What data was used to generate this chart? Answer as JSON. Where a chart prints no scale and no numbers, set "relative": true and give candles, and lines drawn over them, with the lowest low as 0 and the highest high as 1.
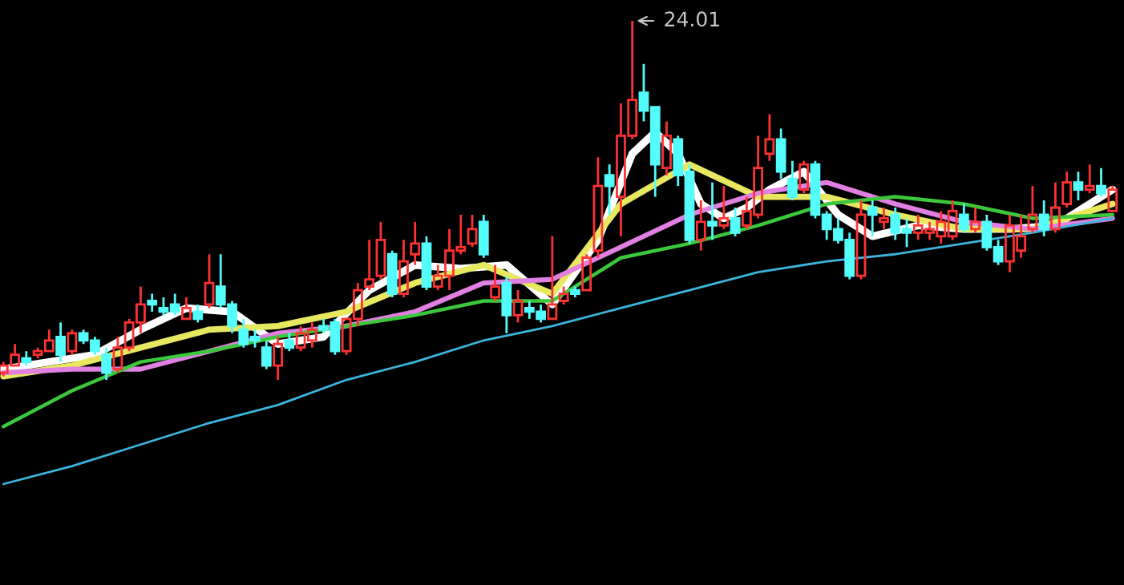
{
  "chart_data": {
    "type": "candlestick",
    "relative": true,
    "colors": [
      "#ff3232",
      "#ff3232",
      "#54fcfc",
      "#ff3232",
      "#ff3232",
      "#54fcfc",
      "#ff3232",
      "#54fcfc",
      "#54fcfc",
      "#54fcfc",
      "#ff3232",
      "#ff3232",
      "#ff3232",
      "#54fcfc",
      "#54fcfc",
      "#54fcfc",
      "#ff3232",
      "#54fcfc",
      "#ff3232",
      "#54fcfc",
      "#54fcfc",
      "#54fcfc",
      "#54fcfc",
      "#54fcfc",
      "#ff3232",
      "#54fcfc",
      "#ff3232",
      "#ff3232",
      "#54fcfc",
      "#54fcfc",
      "#ff3232",
      "#ff3232",
      "#ff3232",
      "#ff3232",
      "#54fcfc",
      "#ff3232",
      "#ff3232",
      "#54fcfc",
      "#ff3232",
      "#ff3232",
      "#ff3232",
      "#ff3232",
      "#54fcfc",
      "#ff3232",
      "#54fcfc",
      "#ff3232",
      "#54fcfc",
      "#54fcfc",
      "#ff3232",
      "#ff3232",
      "#54fcfc",
      "#ff3232",
      "#ff3232",
      "#54fcfc",
      "#ff3232",
      "#ff3232",
      "#54fcfc",
      "#54fcfc",
      "#ff3232",
      "#54fcfc",
      "#54fcfc",
      "#ff3232",
      "#54fcfc",
      "#ff3232",
      "#54fcfc",
      "#ff3232",
      "#ff3232",
      "#ff3232",
      "#54fcfc",
      "#54fcfc",
      "#ff3232",
      "#54fcfc",
      "#54fcfc",
      "#54fcfc",
      "#54fcfc",
      "#ff3232",
      "#54fcfc",
      "#ff3232",
      "#54fcfc",
      "#54fcfc",
      "#ff3232",
      "#ff3232",
      "#ff3232",
      "#ff3232",
      "#54fcfc",
      "#ff3232",
      "#54fcfc",
      "#54fcfc",
      "#ff3232",
      "#ff3232",
      "#ff3232",
      "#54fcfc",
      "#ff3232",
      "#ff3232",
      "#54fcfc",
      "#ff3232",
      "#54fcfc",
      "#ff3232"
    ],
    "categories": [
      null,
      null,
      null,
      null,
      null,
      null,
      null,
      null,
      null,
      null,
      null,
      null,
      null,
      null,
      null,
      null,
      null,
      null,
      null,
      null,
      null,
      null,
      null,
      null,
      null,
      null,
      null,
      null,
      null,
      null,
      null,
      null,
      null,
      null,
      null,
      null,
      null,
      null,
      null,
      null,
      null,
      null,
      null,
      null,
      null,
      null,
      null,
      null,
      null,
      null,
      null,
      null,
      null,
      null,
      null,
      null,
      null,
      null,
      null,
      null,
      null,
      null,
      null,
      null,
      null,
      null,
      null,
      null,
      null,
      null,
      null,
      null,
      null,
      null,
      null,
      null,
      null,
      null,
      null,
      null,
      null,
      null,
      null,
      null,
      null,
      null,
      null,
      null,
      null,
      null,
      null,
      null,
      null,
      null,
      null,
      null,
      null,
      null
    ],
    "ohlc": [
      [
        0.02,
        0.05,
        0.01,
        0.04
      ],
      [
        0.04,
        0.1,
        0.04,
        0.07
      ],
      [
        0.06,
        0.08,
        0.04,
        0.05
      ],
      [
        0.07,
        0.09,
        0.06,
        0.08
      ],
      [
        0.08,
        0.14,
        0.08,
        0.11
      ],
      [
        0.12,
        0.16,
        0.05,
        0.07
      ],
      [
        0.08,
        0.14,
        0.07,
        0.13
      ],
      [
        0.13,
        0.14,
        0.1,
        0.11
      ],
      [
        0.11,
        0.12,
        0.07,
        0.08
      ],
      [
        0.07,
        0.09,
        0.0,
        0.02
      ],
      [
        0.03,
        0.12,
        0.02,
        0.09
      ],
      [
        0.09,
        0.17,
        0.08,
        0.16
      ],
      [
        0.16,
        0.26,
        0.13,
        0.21
      ],
      [
        0.22,
        0.24,
        0.19,
        0.21
      ],
      [
        0.2,
        0.23,
        0.18,
        0.19
      ],
      [
        0.21,
        0.24,
        0.18,
        0.19
      ],
      [
        0.17,
        0.23,
        0.17,
        0.2
      ],
      [
        0.19,
        0.21,
        0.16,
        0.17
      ],
      [
        0.21,
        0.35,
        0.2,
        0.27
      ],
      [
        0.26,
        0.35,
        0.2,
        0.21
      ],
      [
        0.21,
        0.22,
        0.13,
        0.15
      ],
      [
        0.14,
        0.17,
        0.09,
        0.1
      ],
      [
        0.12,
        0.14,
        0.09,
        0.11
      ],
      [
        0.09,
        0.11,
        0.03,
        0.04
      ],
      [
        0.04,
        0.12,
        0.0,
        0.1
      ],
      [
        0.11,
        0.13,
        0.08,
        0.09
      ],
      [
        0.09,
        0.15,
        0.08,
        0.13
      ],
      [
        0.11,
        0.16,
        0.09,
        0.14
      ],
      [
        0.15,
        0.17,
        0.13,
        0.14
      ],
      [
        0.16,
        0.17,
        0.07,
        0.08
      ],
      [
        0.08,
        0.17,
        0.07,
        0.17
      ],
      [
        0.17,
        0.27,
        0.15,
        0.25
      ],
      [
        0.26,
        0.39,
        0.25,
        0.28
      ],
      [
        0.29,
        0.44,
        0.28,
        0.39
      ],
      [
        0.35,
        0.36,
        0.23,
        0.24
      ],
      [
        0.24,
        0.39,
        0.23,
        0.33
      ],
      [
        0.35,
        0.44,
        0.32,
        0.38
      ],
      [
        0.38,
        0.4,
        0.25,
        0.26
      ],
      [
        0.26,
        0.32,
        0.25,
        0.29
      ],
      [
        0.29,
        0.42,
        0.25,
        0.36
      ],
      [
        0.36,
        0.46,
        0.35,
        0.37
      ],
      [
        0.38,
        0.46,
        0.37,
        0.42
      ],
      [
        0.44,
        0.46,
        0.34,
        0.35
      ],
      [
        0.23,
        0.32,
        0.22,
        0.26
      ],
      [
        0.27,
        0.29,
        0.13,
        0.18
      ],
      [
        0.18,
        0.25,
        0.16,
        0.22
      ],
      [
        0.2,
        0.22,
        0.17,
        0.19
      ],
      [
        0.19,
        0.21,
        0.16,
        0.17
      ],
      [
        0.17,
        0.4,
        0.17,
        0.21
      ],
      [
        0.22,
        0.26,
        0.21,
        0.24
      ],
      [
        0.25,
        0.26,
        0.23,
        0.24
      ],
      [
        0.25,
        0.35,
        0.25,
        0.34
      ],
      [
        0.36,
        0.62,
        0.34,
        0.54
      ],
      [
        0.57,
        0.6,
        0.46,
        0.54
      ],
      [
        0.51,
        0.77,
        0.4,
        0.68
      ],
      [
        0.68,
        1.0,
        0.67,
        0.78
      ],
      [
        0.8,
        0.88,
        0.72,
        0.75
      ],
      [
        0.76,
        0.76,
        0.51,
        0.6
      ],
      [
        0.59,
        0.72,
        0.57,
        0.68
      ],
      [
        0.67,
        0.68,
        0.54,
        0.57
      ],
      [
        0.58,
        0.6,
        0.38,
        0.39
      ],
      [
        0.39,
        0.5,
        0.36,
        0.44
      ],
      [
        0.44,
        0.55,
        0.39,
        0.43
      ],
      [
        0.43,
        0.54,
        0.42,
        0.45
      ],
      [
        0.45,
        0.48,
        0.4,
        0.41
      ],
      [
        0.43,
        0.51,
        0.42,
        0.47
      ],
      [
        0.46,
        0.68,
        0.45,
        0.59
      ],
      [
        0.63,
        0.74,
        0.61,
        0.67
      ],
      [
        0.67,
        0.7,
        0.56,
        0.58
      ],
      [
        0.56,
        0.61,
        0.5,
        0.51
      ],
      [
        0.53,
        0.61,
        0.52,
        0.6
      ],
      [
        0.6,
        0.61,
        0.45,
        0.46
      ],
      [
        0.46,
        0.47,
        0.39,
        0.42
      ],
      [
        0.42,
        0.45,
        0.38,
        0.39
      ],
      [
        0.39,
        0.41,
        0.28,
        0.29
      ],
      [
        0.29,
        0.5,
        0.28,
        0.46
      ],
      [
        0.48,
        0.5,
        0.4,
        0.46
      ],
      [
        0.44,
        0.48,
        0.42,
        0.45
      ],
      [
        0.46,
        0.48,
        0.39,
        0.41
      ],
      [
        0.42,
        0.45,
        0.37,
        0.41
      ],
      [
        0.41,
        0.46,
        0.39,
        0.43
      ],
      [
        0.41,
        0.44,
        0.39,
        0.42
      ],
      [
        0.4,
        0.47,
        0.38,
        0.44
      ],
      [
        0.4,
        0.5,
        0.39,
        0.47
      ],
      [
        0.46,
        0.49,
        0.41,
        0.42
      ],
      [
        0.42,
        0.48,
        0.41,
        0.44
      ],
      [
        0.44,
        0.46,
        0.36,
        0.37
      ],
      [
        0.37,
        0.39,
        0.32,
        0.33
      ],
      [
        0.33,
        0.46,
        0.3,
        0.43
      ],
      [
        0.36,
        0.46,
        0.34,
        0.4
      ],
      [
        0.42,
        0.54,
        0.41,
        0.46
      ],
      [
        0.46,
        0.5,
        0.4,
        0.42
      ],
      [
        0.42,
        0.55,
        0.41,
        0.48
      ],
      [
        0.49,
        0.58,
        0.48,
        0.55
      ],
      [
        0.55,
        0.58,
        0.5,
        0.53
      ],
      [
        0.53,
        0.6,
        0.52,
        0.54
      ],
      [
        0.54,
        0.59,
        0.51,
        0.52
      ],
      [
        0.47,
        0.54,
        0.47,
        0.53
      ]
    ],
    "series": [
      {
        "type": "line",
        "color": "#ffffff",
        "values": [
          0.03,
          null,
          null,
          null,
          0.05,
          null,
          null,
          null,
          0.07,
          null,
          null,
          null,
          0.14,
          null,
          null,
          null,
          0.2,
          null,
          null,
          null,
          0.19,
          null,
          null,
          null,
          0.1,
          null,
          null,
          null,
          0.12,
          null,
          null,
          null,
          0.25,
          null,
          null,
          null,
          0.32,
          null,
          null,
          null,
          0.31,
          null,
          null,
          null,
          0.32,
          null,
          null,
          null,
          0.21,
          null,
          null,
          null,
          0.39,
          null,
          null,
          0.63,
          null,
          0.69,
          null,
          0.63,
          null,
          0.49,
          null,
          0.45,
          null,
          0.48,
          null,
          0.53,
          null,
          null,
          0.58,
          null,
          null,
          0.46,
          null,
          null,
          0.4,
          null,
          null,
          null,
          0.43,
          null,
          null,
          null,
          0.42,
          null,
          null,
          null,
          0.42,
          null,
          null,
          null,
          0.43,
          null,
          null,
          null,
          null,
          0.53
        ]
      },
      {
        "type": "line",
        "color": "#e8e860",
        "values": [
          0.01,
          null,
          null,
          null,
          null,
          null,
          0.04,
          null,
          null,
          null,
          null,
          null,
          0.09,
          null,
          null,
          null,
          null,
          null,
          0.14,
          null,
          null,
          null,
          null,
          null,
          0.15,
          null,
          null,
          null,
          null,
          null,
          0.19,
          null,
          null,
          null,
          null,
          null,
          0.27,
          null,
          null,
          null,
          null,
          null,
          0.32,
          null,
          null,
          null,
          null,
          null,
          0.24,
          null,
          null,
          null,
          null,
          null,
          0.49,
          null,
          null,
          null,
          null,
          null,
          0.6,
          null,
          null,
          null,
          null,
          null,
          0.51,
          null,
          null,
          null,
          null,
          null,
          0.51,
          null,
          null,
          null,
          null,
          null,
          0.46,
          null,
          null,
          null,
          null,
          null,
          0.42,
          null,
          null,
          null,
          null,
          null,
          0.42,
          null,
          null,
          null,
          null,
          null,
          null,
          0.49
        ]
      },
      {
        "type": "line",
        "color": "#e080e0",
        "values": [
          0.02,
          null,
          null,
          null,
          null,
          null,
          0.03,
          null,
          null,
          null,
          null,
          null,
          0.03,
          null,
          null,
          null,
          null,
          null,
          0.08,
          null,
          null,
          null,
          null,
          null,
          0.13,
          null,
          null,
          null,
          null,
          null,
          0.15,
          null,
          null,
          null,
          null,
          null,
          0.19,
          null,
          null,
          null,
          null,
          null,
          0.27,
          null,
          null,
          null,
          null,
          null,
          0.28,
          null,
          null,
          null,
          null,
          null,
          0.37,
          null,
          null,
          null,
          null,
          null,
          0.46,
          null,
          null,
          null,
          null,
          null,
          0.52,
          null,
          null,
          null,
          null,
          null,
          0.55,
          null,
          null,
          null,
          null,
          null,
          0.49,
          null,
          null,
          null,
          null,
          null,
          0.44,
          null,
          null,
          null,
          null,
          null,
          0.42,
          null,
          null,
          null,
          null,
          null,
          null,
          0.45
        ]
      },
      {
        "type": "line",
        "color": "#3cc83c",
        "values": [
          -0.13,
          null,
          null,
          null,
          null,
          null,
          -0.03,
          null,
          null,
          null,
          null,
          null,
          0.05,
          null,
          null,
          null,
          null,
          null,
          0.08,
          null,
          null,
          null,
          null,
          null,
          0.12,
          null,
          null,
          null,
          null,
          null,
          0.15,
          null,
          null,
          null,
          null,
          null,
          0.18,
          null,
          null,
          null,
          null,
          null,
          0.22,
          null,
          null,
          null,
          null,
          null,
          0.22,
          null,
          null,
          null,
          null,
          null,
          0.34,
          null,
          null,
          null,
          null,
          null,
          0.38,
          null,
          null,
          null,
          null,
          null,
          0.43,
          null,
          null,
          null,
          null,
          null,
          0.49,
          null,
          null,
          null,
          null,
          null,
          0.51,
          null,
          null,
          null,
          null,
          null,
          0.49,
          null,
          null,
          null,
          null,
          null,
          0.45,
          null,
          null,
          null,
          null,
          null,
          null,
          0.46
        ]
      },
      {
        "type": "line",
        "color": "#3cb4dc",
        "values": [
          -0.29,
          null,
          null,
          null,
          null,
          null,
          -0.24,
          null,
          null,
          null,
          null,
          null,
          -0.18,
          null,
          null,
          null,
          null,
          null,
          -0.12,
          null,
          null,
          null,
          null,
          null,
          -0.07,
          null,
          null,
          null,
          null,
          null,
          0.0,
          null,
          null,
          null,
          null,
          null,
          0.05,
          null,
          null,
          null,
          null,
          null,
          0.11,
          null,
          null,
          null,
          null,
          null,
          0.15,
          null,
          null,
          null,
          null,
          null,
          0.2,
          null,
          null,
          null,
          null,
          null,
          0.25,
          null,
          null,
          null,
          null,
          null,
          0.3,
          null,
          null,
          null,
          null,
          null,
          0.33,
          null,
          null,
          null,
          null,
          null,
          0.35,
          null,
          null,
          null,
          null,
          null,
          0.38,
          null,
          null,
          null,
          null,
          null,
          0.41,
          null,
          null,
          null,
          null,
          null,
          null,
          0.45
        ]
      }
    ],
    "annotations": [
      "24.01"
    ]
  }
}
